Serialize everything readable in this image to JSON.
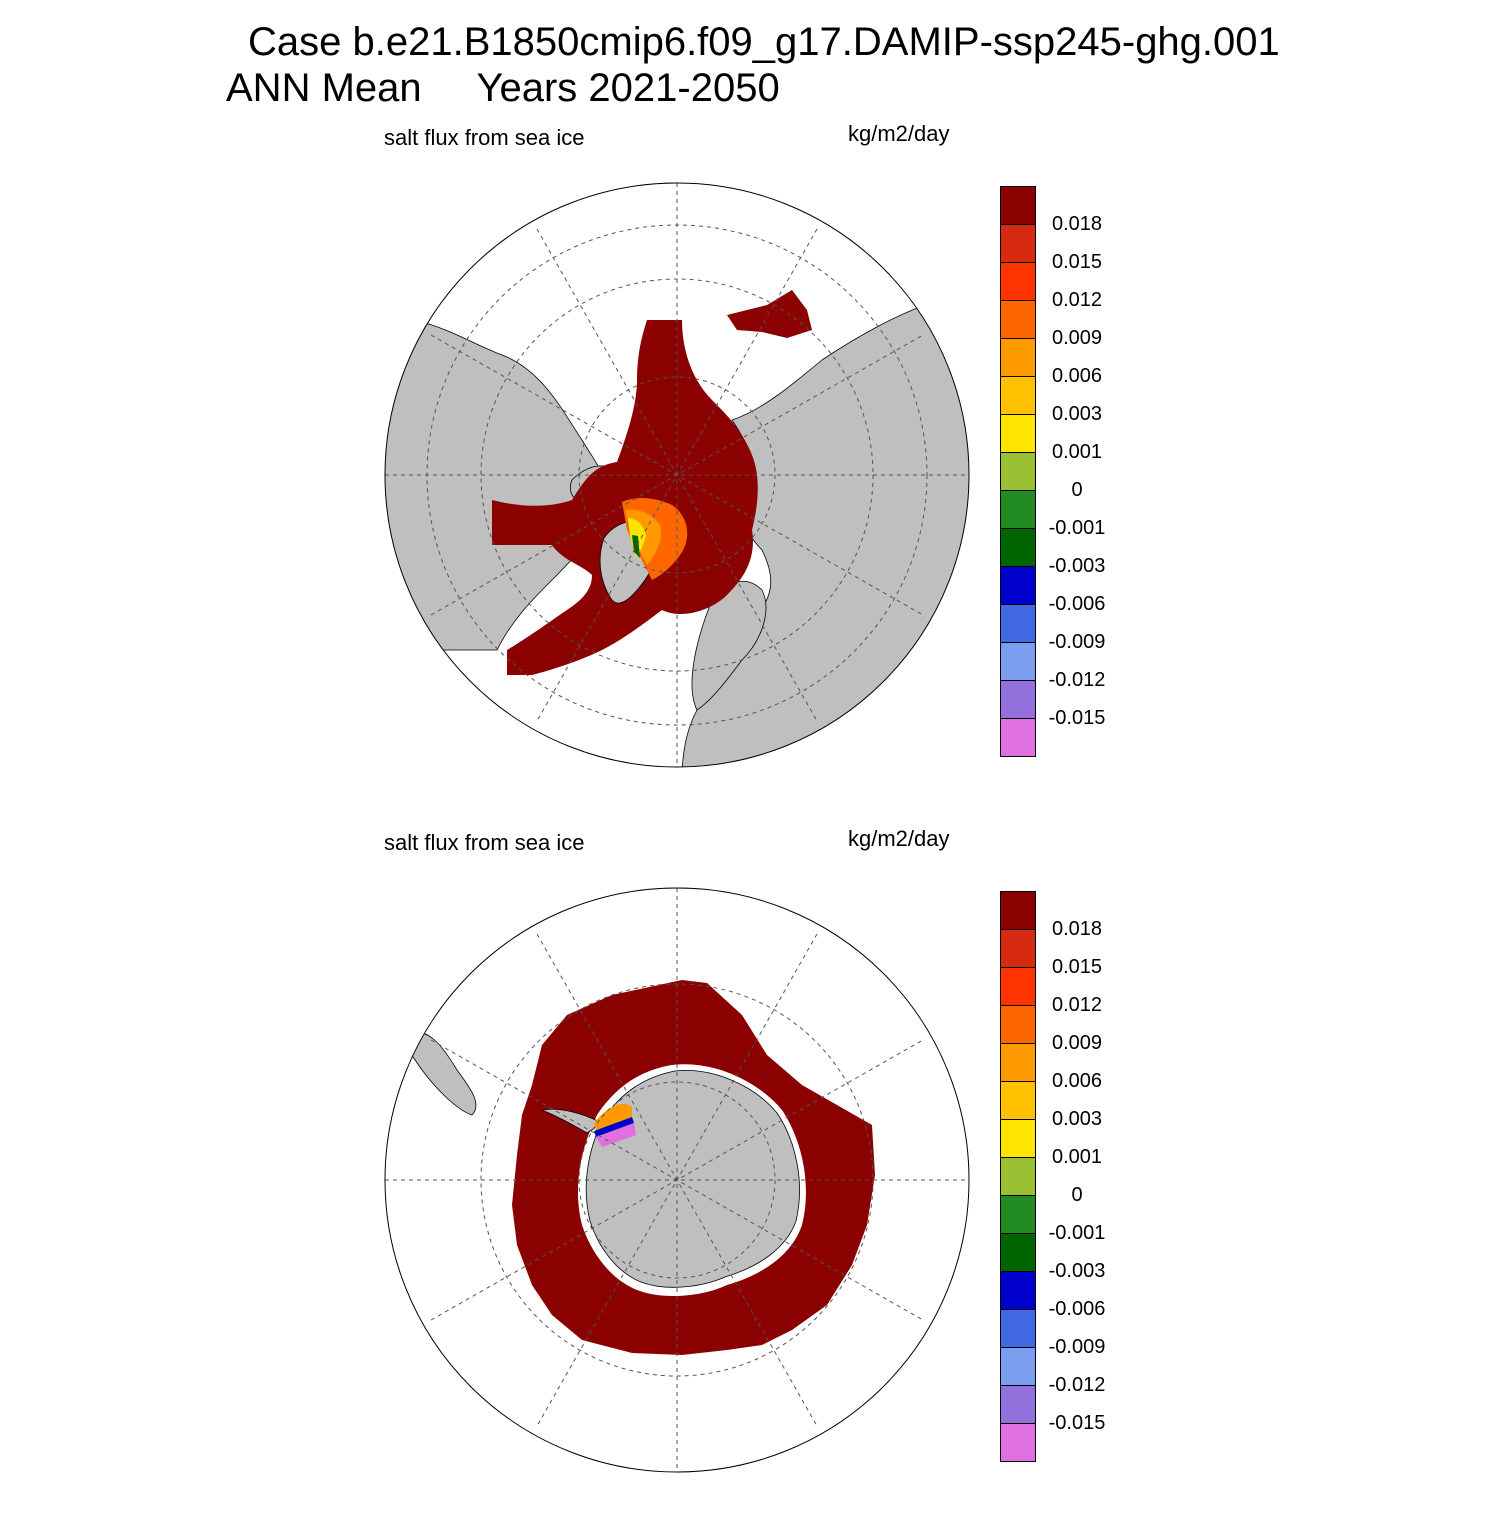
{
  "title": {
    "line1": "Case b.e21.B1850cmip6.f09_g17.DAMIP-ssp245-ghg.001",
    "line2": "ANN Mean     Years 2021-2050"
  },
  "colors": {
    "land": "#bfbfbf",
    "ice_max": "#8b0000",
    "grid": "#555555"
  },
  "chart_data": [
    {
      "type": "heatmap",
      "projection": "north polar stereographic",
      "title": "salt flux from sea ice",
      "units": "kg/m2/day",
      "colorbar": {
        "levels": [
          "0.018",
          "0.015",
          "0.012",
          "0.009",
          "0.006",
          "0.003",
          "0.001",
          "0",
          "-0.001",
          "-0.003",
          "-0.006",
          "-0.009",
          "-0.012",
          "-0.015"
        ],
        "colors": [
          "#8b0000",
          "#d62a12",
          "#ff3300",
          "#ff6600",
          "#ff9900",
          "#ffc000",
          "#ffe400",
          "#99bf33",
          "#228b22",
          "#006400",
          "#0000cd",
          "#4169e1",
          "#7b9ef0",
          "#9370db",
          "#e070e0"
        ]
      },
      "grid": true,
      "dominant_value": "> 0.018"
    },
    {
      "type": "heatmap",
      "projection": "south polar stereographic",
      "title": "salt flux from sea ice",
      "units": "kg/m2/day",
      "colorbar": {
        "levels": [
          "0.018",
          "0.015",
          "0.012",
          "0.009",
          "0.006",
          "0.003",
          "0.001",
          "0",
          "-0.001",
          "-0.003",
          "-0.006",
          "-0.009",
          "-0.012",
          "-0.015"
        ],
        "colors": [
          "#8b0000",
          "#d62a12",
          "#ff3300",
          "#ff6600",
          "#ff9900",
          "#ffc000",
          "#ffe400",
          "#99bf33",
          "#228b22",
          "#006400",
          "#0000cd",
          "#4169e1",
          "#7b9ef0",
          "#9370db",
          "#e070e0"
        ]
      },
      "grid": true,
      "dominant_value": "> 0.018"
    }
  ]
}
